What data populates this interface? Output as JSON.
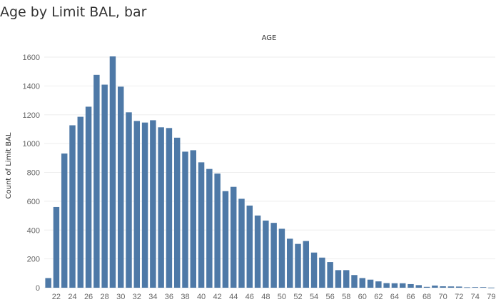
{
  "chart_data": {
    "type": "bar",
    "title": "Age by Limit BAL, bar",
    "xlabel": "AGE",
    "ylabel": "Count of Limit BAL",
    "ylim": [
      0,
      1700
    ],
    "yticks": [
      0,
      200,
      400,
      600,
      800,
      1000,
      1200,
      1400,
      1600
    ],
    "grid": true,
    "bar_color": "#4e79a7",
    "categories": [
      "21",
      "22",
      "23",
      "24",
      "25",
      "26",
      "27",
      "28",
      "29",
      "30",
      "31",
      "32",
      "33",
      "34",
      "35",
      "36",
      "37",
      "38",
      "39",
      "40",
      "41",
      "42",
      "43",
      "44",
      "45",
      "46",
      "47",
      "48",
      "49",
      "50",
      "51",
      "52",
      "53",
      "54",
      "55",
      "56",
      "57",
      "58",
      "59",
      "60",
      "61",
      "62",
      "63",
      "64",
      "65",
      "66",
      "67",
      "68",
      "69",
      "70",
      "71",
      "72",
      "73",
      "74",
      "75",
      "79"
    ],
    "xtick_labels": [
      "22",
      "24",
      "26",
      "28",
      "30",
      "32",
      "34",
      "36",
      "38",
      "40",
      "42",
      "44",
      "46",
      "48",
      "50",
      "52",
      "54",
      "56",
      "58",
      "60",
      "62",
      "64",
      "66",
      "68",
      "70",
      "72",
      "74",
      "79"
    ],
    "values": [
      67,
      560,
      931,
      1127,
      1186,
      1256,
      1477,
      1409,
      1605,
      1395,
      1217,
      1157,
      1146,
      1162,
      1113,
      1108,
      1041,
      944,
      954,
      870,
      824,
      792,
      670,
      700,
      617,
      570,
      501,
      466,
      450,
      409,
      340,
      304,
      324,
      244,
      209,
      178,
      122,
      122,
      88,
      67,
      56,
      44,
      32,
      31,
      31,
      25,
      18,
      6,
      15,
      10,
      9,
      8,
      3,
      4,
      4,
      1
    ]
  }
}
